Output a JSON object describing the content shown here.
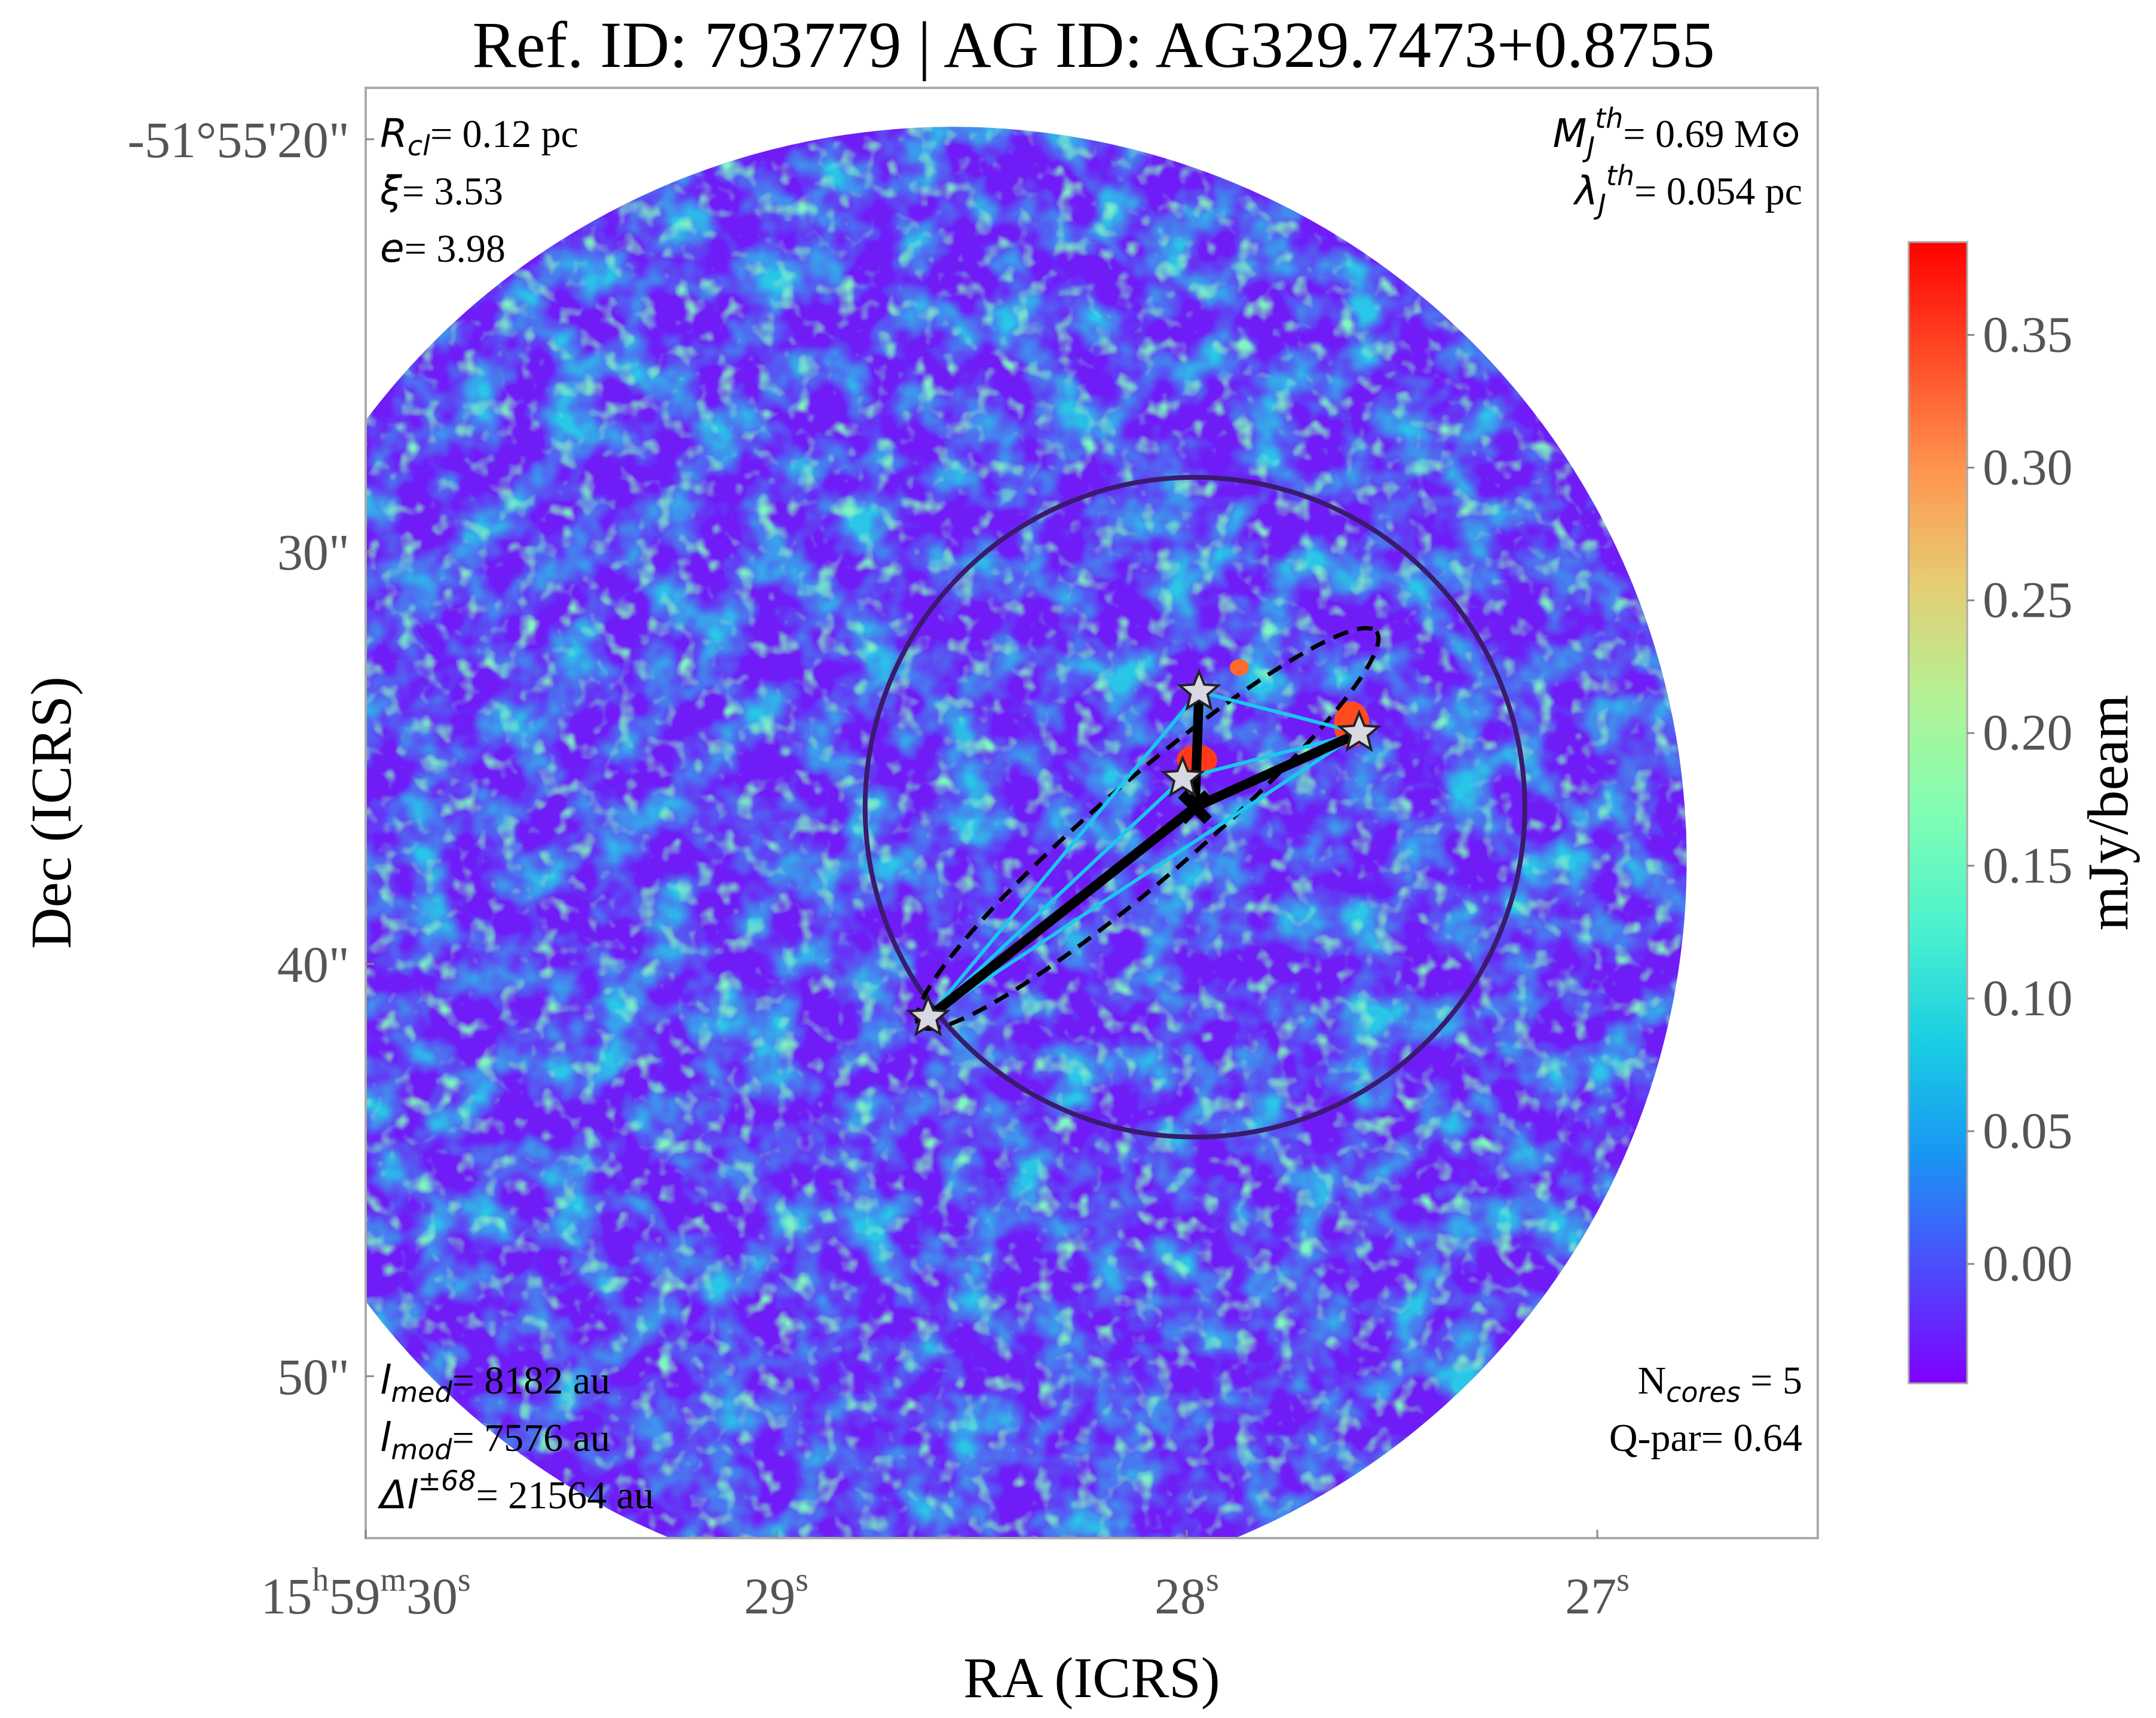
{
  "chart_data": {
    "type": "heatmap",
    "title": "Ref. ID: 793779 | AG ID: AG329.7473+0.8755",
    "xlabel": "RA (ICRS)",
    "ylabel": "Dec (ICRS)",
    "x_ticks": [
      {
        "h": "15",
        "m": "59",
        "s": "30",
        "value_s": 30
      },
      {
        "s": "29",
        "value_s": 29
      },
      {
        "s": "28",
        "value_s": 28
      },
      {
        "s": "27",
        "value_s": 27
      }
    ],
    "y_ticks": [
      {
        "label": "-51°55'20\"",
        "value_arcsec": 20
      },
      {
        "label": "30\"",
        "value_arcsec": 30
      },
      {
        "label": "40\"",
        "value_arcsec": 40
      },
      {
        "label": "50\"",
        "value_arcsec": 50
      }
    ],
    "ra_range_s": [
      27.0,
      30.0
    ],
    "dec_range_arcsec": [
      20.0,
      50.0
    ],
    "colorbar": {
      "label": "mJy/beam",
      "colormap": "rainbow",
      "range": [
        -0.045,
        0.385
      ],
      "ticks": [
        "0.00",
        "0.05",
        "0.10",
        "0.15",
        "0.20",
        "0.25",
        "0.30",
        "0.35"
      ],
      "tick_values": [
        0.0,
        0.05,
        0.1,
        0.15,
        0.2,
        0.25,
        0.3,
        0.35
      ],
      "colors": [
        "#7f00ff",
        "#4d4bfc",
        "#1996f3",
        "#1acee3",
        "#4cf2ce",
        "#80feb3",
        "#b2f295",
        "#e6cd73",
        "#ff964f",
        "#ff4b27",
        "#ff0000"
      ]
    },
    "annotations": {
      "top_left": [
        {
          "sym": "R",
          "sub": "cl",
          "value": "= 0.12 pc"
        },
        {
          "sym": "ξ",
          "sub": "",
          "value": "= 3.53"
        },
        {
          "sym": "e",
          "sub": "",
          "value": "= 3.98"
        }
      ],
      "top_right": [
        {
          "sym": "M",
          "sup": "th",
          "sub": "J",
          "value": "= 0.69 M",
          "suffix": "⊙"
        },
        {
          "sym": "λ",
          "sup": "th",
          "sub": "J",
          "value": "= 0.054 pc",
          "suffix": ""
        }
      ],
      "bottom_left": [
        {
          "sym": "l",
          "sub": "med",
          "sup": "",
          "value": "= 8182 au"
        },
        {
          "sym": "l",
          "sub": "mod",
          "sup": "",
          "value": "= 7576 au"
        },
        {
          "sym": "Δl",
          "sub": "",
          "sup": "±68",
          "value": "= 21564 au"
        }
      ],
      "bottom_right": [
        {
          "text": "N",
          "sub": "cores",
          "value": " = 5"
        },
        {
          "text": "Q-par= 0.64",
          "sub": "",
          "value": ""
        }
      ]
    },
    "cores": [
      {
        "ra_s": 27.97,
        "dec_arcsec": 33.4
      },
      {
        "ra_s": 27.58,
        "dec_arcsec": 34.4
      },
      {
        "ra_s": 28.01,
        "dec_arcsec": 35.5
      },
      {
        "ra_s": 28.63,
        "dec_arcsec": 41.3
      },
      {
        "ra_s": 27.98,
        "dec_arcsec": 36.2
      }
    ],
    "mst_edges": [
      [
        0,
        4
      ],
      [
        1,
        4
      ],
      [
        3,
        4
      ]
    ],
    "cyan_edges": [
      [
        0,
        1
      ],
      [
        1,
        3
      ],
      [
        0,
        3
      ],
      [
        2,
        1
      ],
      [
        2,
        3
      ]
    ],
    "cluster_center": {
      "ra_s": 27.98,
      "dec_arcsec": 36.2
    },
    "cluster_radius_arcsec": 8.0,
    "fov_center": {
      "ra_s": 28.57,
      "dec_arcsec": 37.5
    },
    "fov_radius_arcsec": 17.8
  }
}
